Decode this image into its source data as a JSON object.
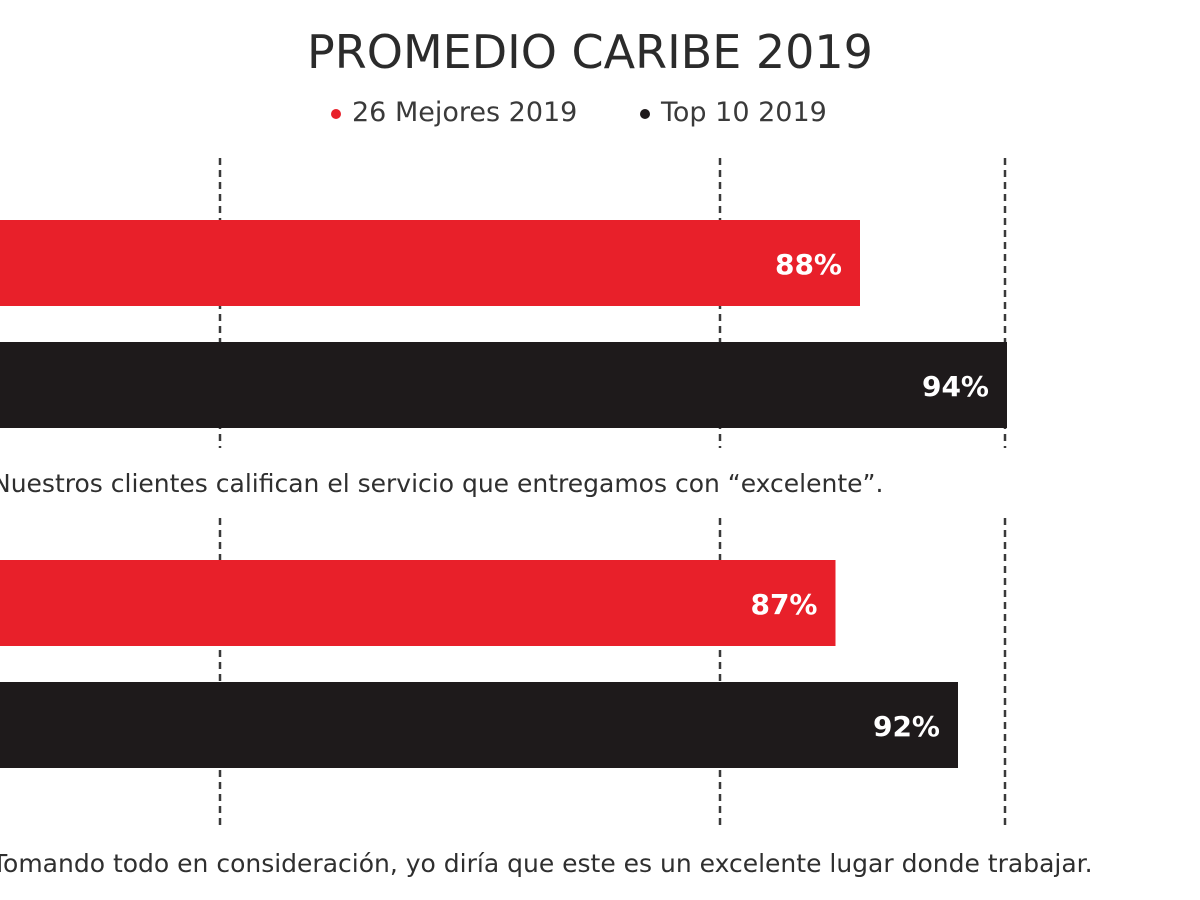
{
  "chart_data": {
    "type": "bar",
    "orientation": "horizontal",
    "title": "PROMEDIO CARIBE 2019",
    "legend": [
      {
        "label": "26 Mejores 2019",
        "color": "#e8202a"
      },
      {
        "label": "Top 10 2019",
        "color": "#1e1a1b"
      }
    ],
    "groups": [
      {
        "caption": "Nuestros clientes califican el servicio que entregamos con “excelente”.",
        "bars": [
          {
            "series": "26 Mejores 2019",
            "value": 88,
            "label": "88%"
          },
          {
            "series": "Top 10 2019",
            "value": 94,
            "label": "94%"
          }
        ]
      },
      {
        "caption": "Tomando todo en consideración, yo diría que este es un excelente lugar donde trabajar.",
        "bars": [
          {
            "series": "26 Mejores 2019",
            "value": 87,
            "label": "87%"
          },
          {
            "series": "Top 10 2019",
            "value": 92,
            "label": "92%"
          }
        ]
      }
    ],
    "xlim": [
      0,
      100
    ]
  }
}
